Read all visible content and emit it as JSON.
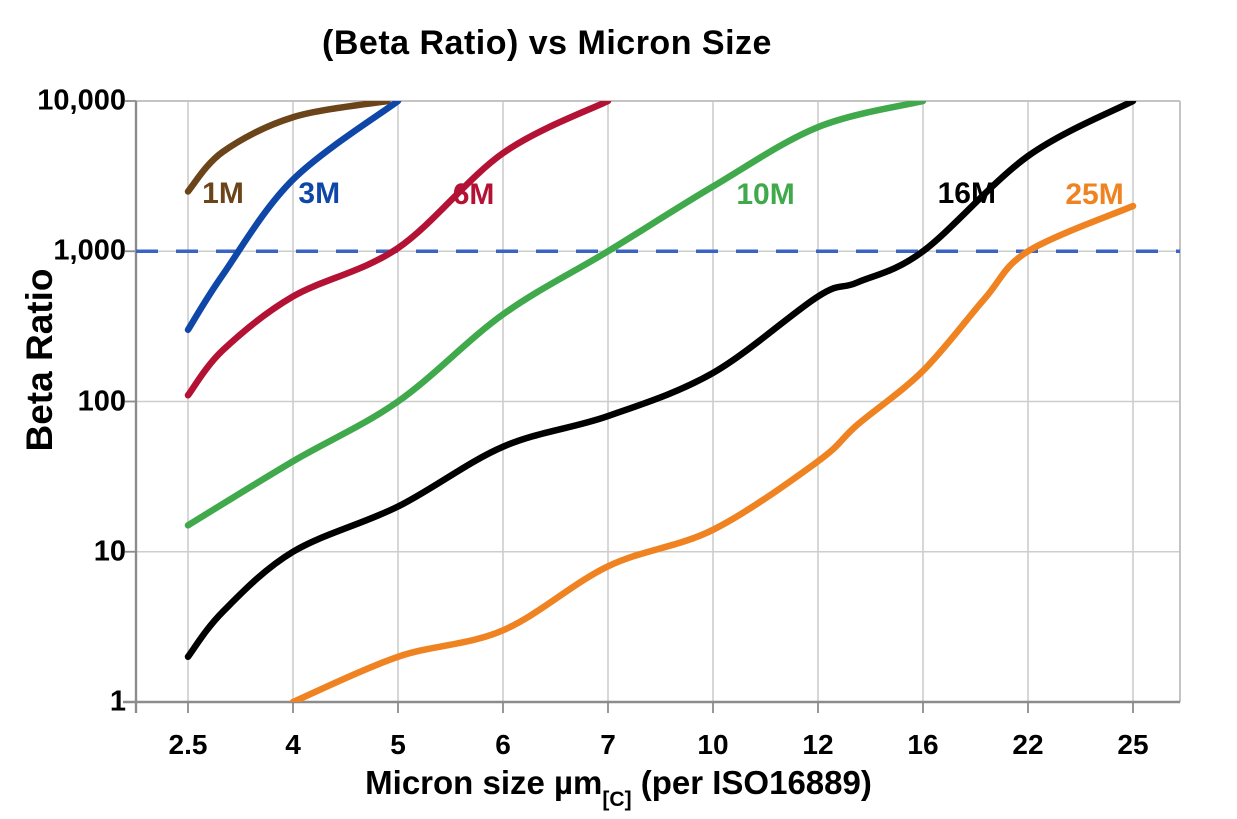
{
  "page": {
    "background": "#ffffff"
  },
  "chart_data": {
    "type": "line",
    "title": "(Beta Ratio) vs Micron Size",
    "ylabel": "Beta Ratio",
    "xlabel": {
      "prefix": "Micron size µm",
      "subscript": "[C]",
      "suffix": " (per ISO16889)"
    },
    "x_scale": "categorical-evenly-spaced",
    "y_scale": "log",
    "ylim": [
      1,
      10000
    ],
    "x_ticks": [
      "2.5",
      "4",
      "5",
      "6",
      "7",
      "10",
      "12",
      "16",
      "22",
      "25"
    ],
    "x_tick_values": [
      2.5,
      4,
      5,
      6,
      7,
      10,
      12,
      16,
      22,
      25
    ],
    "y_ticks": [
      "10,000",
      "1,000",
      "100",
      "10",
      "1"
    ],
    "y_tick_values": [
      10000,
      1000,
      100,
      10,
      1
    ],
    "grid": true,
    "legend_position": "inline-curve-labels",
    "reference_line": {
      "value": 1000,
      "style": "dashed",
      "color": "#3B63C4"
    },
    "series": [
      {
        "name": "1M",
        "color": "#6B4419",
        "label_anchor": {
          "x": 3.0,
          "y": 2400
        },
        "points": [
          [
            2.5,
            2500
          ],
          [
            3,
            4600
          ],
          [
            4,
            7800
          ],
          [
            4.9,
            10000
          ]
        ]
      },
      {
        "name": "3M",
        "color": "#0E47A8",
        "label_anchor": {
          "x": 4.25,
          "y": 2400
        },
        "points": [
          [
            2.5,
            300
          ],
          [
            3,
            700
          ],
          [
            4,
            3000
          ],
          [
            5,
            10000
          ]
        ]
      },
      {
        "name": "6M",
        "color": "#B41235",
        "label_anchor": {
          "x": 5.72,
          "y": 2350
        },
        "points": [
          [
            2.5,
            110
          ],
          [
            3,
            220
          ],
          [
            4,
            500
          ],
          [
            5,
            1050
          ],
          [
            6,
            4500
          ],
          [
            7,
            10000
          ]
        ]
      },
      {
        "name": "10M",
        "color": "#3FA94C",
        "label_anchor": {
          "x": 11.0,
          "y": 2350
        },
        "points": [
          [
            2.5,
            15
          ],
          [
            4,
            40
          ],
          [
            5,
            100
          ],
          [
            6,
            380
          ],
          [
            7,
            1000
          ],
          [
            10,
            2700
          ],
          [
            12,
            6700
          ],
          [
            16,
            10000
          ]
        ]
      },
      {
        "name": "16M",
        "color": "#000000",
        "label_anchor": {
          "x": 18.5,
          "y": 2400
        },
        "points": [
          [
            2.5,
            2
          ],
          [
            3,
            4
          ],
          [
            4,
            10
          ],
          [
            5,
            20
          ],
          [
            6,
            50
          ],
          [
            7,
            80
          ],
          [
            10,
            155
          ],
          [
            12,
            500
          ],
          [
            13.5,
            620
          ],
          [
            16,
            1000
          ],
          [
            22,
            4300
          ],
          [
            25,
            10000
          ]
        ]
      },
      {
        "name": "25M",
        "color": "#EF8322",
        "label_anchor": {
          "x": 23.9,
          "y": 2350
        },
        "points": [
          [
            4,
            1
          ],
          [
            5,
            2
          ],
          [
            6,
            3
          ],
          [
            7,
            8
          ],
          [
            10,
            14
          ],
          [
            12,
            40
          ],
          [
            13.5,
            70
          ],
          [
            16,
            160
          ],
          [
            19.5,
            480
          ],
          [
            22,
            1000
          ],
          [
            25,
            2000
          ]
        ]
      }
    ],
    "colors": {
      "gridline": "#CDCDCD",
      "border": "#C4C4C4",
      "axis": "#8C8C8C",
      "text": "#000000"
    }
  }
}
